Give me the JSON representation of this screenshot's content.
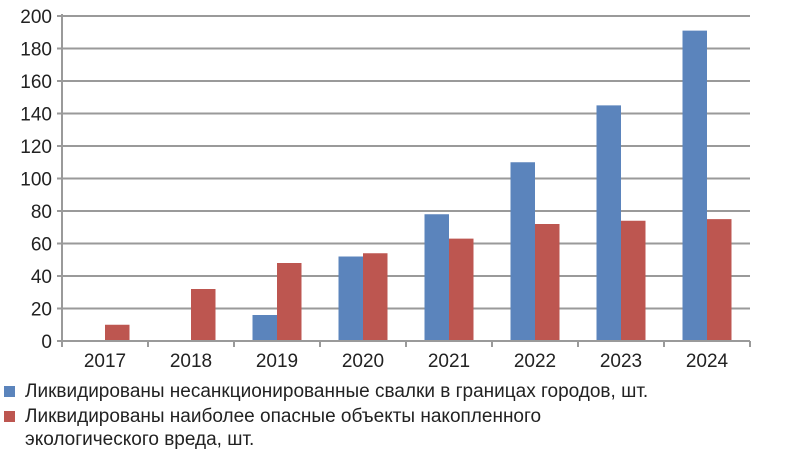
{
  "chart_data": {
    "type": "bar",
    "categories": [
      "2017",
      "2018",
      "2019",
      "2020",
      "2021",
      "2022",
      "2023",
      "2024"
    ],
    "series": [
      {
        "name": "Ликвидированы несанкционированные свалки в границах городов, шт.",
        "color": "#5b84bc",
        "values": [
          0,
          0,
          16,
          52,
          78,
          110,
          145,
          191
        ]
      },
      {
        "name": "Ликвидированы наиболее опасные объекты накопленного экологического вреда, шт.",
        "color": "#bd5650",
        "values": [
          10,
          32,
          48,
          54,
          63,
          72,
          74,
          75
        ]
      }
    ],
    "ylim": [
      0,
      200
    ],
    "yticks": [
      "0",
      "20",
      "40",
      "60",
      "80",
      "100",
      "120",
      "140",
      "160",
      "180",
      "200"
    ],
    "grid": true,
    "legend_position": "bottom",
    "xlabel": "",
    "ylabel": ""
  }
}
